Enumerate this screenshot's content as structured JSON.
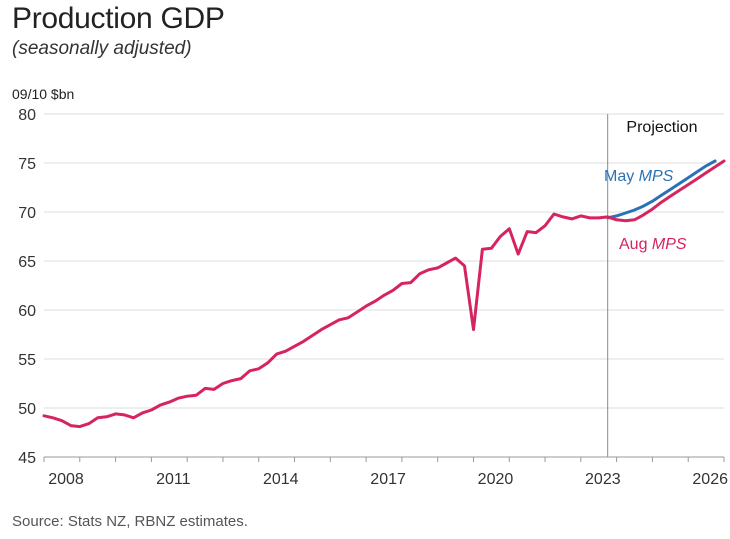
{
  "header": {
    "title": "Production GDP",
    "subtitle": "(seasonally adjusted)"
  },
  "footer": {
    "source": "Source: Stats NZ, RBNZ estimates."
  },
  "colors": {
    "aug_mps": "#d6245e",
    "may_mps": "#2a72b5",
    "grid": "#e8e8e8",
    "axis": "#999999",
    "projection_line": "#8a8a8a"
  },
  "chart_data": {
    "type": "line",
    "title": "Production GDP",
    "subtitle": "(seasonally adjusted)",
    "ylabel": "09/10 $bn",
    "xlabel": "",
    "ylim": [
      45,
      80
    ],
    "yticks": [
      45,
      50,
      55,
      60,
      65,
      70,
      75,
      80
    ],
    "xlim": [
      2008.0,
      2027.0
    ],
    "xticks": [
      2008,
      2011,
      2014,
      2017,
      2020,
      2023,
      2026
    ],
    "xtick_labels": [
      "2008",
      "2011",
      "2014",
      "2017",
      "2020",
      "2023",
      "2026"
    ],
    "grid": true,
    "projection_start": 2023.75,
    "annotations": {
      "projection": "Projection",
      "may_label_prefix": "May ",
      "may_label_italic": "MPS",
      "aug_label_prefix": "Aug ",
      "aug_label_italic": "MPS"
    },
    "series": [
      {
        "name": "Aug MPS",
        "color": "#d6245e",
        "x": [
          2008.0,
          2008.25,
          2008.5,
          2008.75,
          2009.0,
          2009.25,
          2009.5,
          2009.75,
          2010.0,
          2010.25,
          2010.5,
          2010.75,
          2011.0,
          2011.25,
          2011.5,
          2011.75,
          2012.0,
          2012.25,
          2012.5,
          2012.75,
          2013.0,
          2013.25,
          2013.5,
          2013.75,
          2014.0,
          2014.25,
          2014.5,
          2014.75,
          2015.0,
          2015.25,
          2015.5,
          2015.75,
          2016.0,
          2016.25,
          2016.5,
          2016.75,
          2017.0,
          2017.25,
          2017.5,
          2017.75,
          2018.0,
          2018.25,
          2018.5,
          2018.75,
          2019.0,
          2019.25,
          2019.5,
          2019.75,
          2020.0,
          2020.25,
          2020.5,
          2020.75,
          2021.0,
          2021.25,
          2021.5,
          2021.75,
          2022.0,
          2022.25,
          2022.5,
          2022.75,
          2023.0,
          2023.25,
          2023.5,
          2023.75,
          2024.0,
          2024.25,
          2024.5,
          2024.75,
          2025.0,
          2025.25,
          2025.5,
          2025.75,
          2026.0,
          2026.25,
          2026.5,
          2026.75,
          2027.0
        ],
        "values": [
          49.2,
          49.0,
          48.7,
          48.2,
          48.1,
          48.4,
          49.0,
          49.1,
          49.4,
          49.3,
          49.0,
          49.5,
          49.8,
          50.3,
          50.6,
          51.0,
          51.2,
          51.3,
          52.0,
          51.9,
          52.5,
          52.8,
          53.0,
          53.8,
          54.0,
          54.6,
          55.5,
          55.8,
          56.3,
          56.8,
          57.4,
          58.0,
          58.5,
          59.0,
          59.2,
          59.8,
          60.4,
          60.9,
          61.5,
          62.0,
          62.7,
          62.8,
          63.7,
          64.1,
          64.3,
          64.8,
          65.3,
          64.5,
          58.0,
          66.2,
          66.3,
          67.5,
          68.3,
          65.7,
          68.0,
          67.9,
          68.6,
          69.8,
          69.5,
          69.3,
          69.6,
          69.4,
          69.4,
          69.5,
          69.2,
          69.1,
          69.2,
          69.7,
          70.3,
          71.0,
          71.6,
          72.2,
          72.8,
          73.4,
          74.0,
          74.6,
          75.2
        ]
      },
      {
        "name": "May MPS",
        "color": "#2a72b5",
        "x": [
          2023.75,
          2024.0,
          2024.25,
          2024.5,
          2024.75,
          2025.0,
          2025.25,
          2025.5,
          2025.75,
          2026.0,
          2026.25,
          2026.5,
          2026.75
        ],
        "values": [
          69.4,
          69.6,
          69.9,
          70.2,
          70.6,
          71.1,
          71.7,
          72.3,
          72.9,
          73.5,
          74.1,
          74.7,
          75.2
        ]
      }
    ]
  }
}
